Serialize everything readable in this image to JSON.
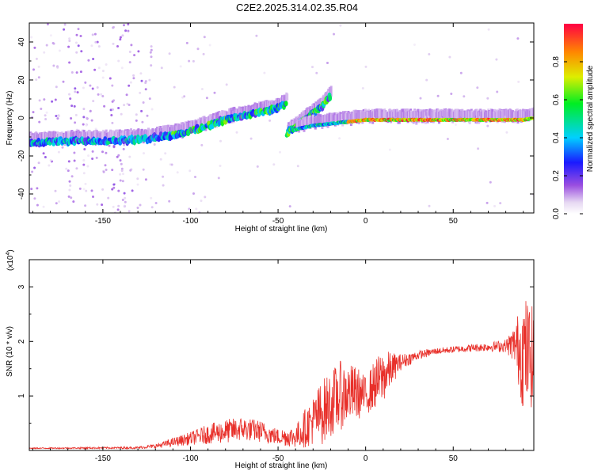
{
  "title": "C2E2.2025.314.02.35.R04",
  "chart_data": [
    {
      "type": "heatmap",
      "xlabel": "Height of straight line (km)",
      "ylabel": "Frequency (Hz)",
      "xlim": [
        -192,
        96
      ],
      "ylim": [
        -50,
        50
      ],
      "xticks": [
        -150,
        -100,
        -50,
        0,
        50
      ],
      "yticks": [
        -40,
        -20,
        0,
        20,
        40
      ],
      "colorbar": {
        "label": "Normalized spectral amplitude",
        "range": [
          0,
          1
        ],
        "ticks": [
          0.0,
          0.2,
          0.4,
          0.6,
          0.8
        ],
        "tick_labels": [
          "0.0",
          "0.2",
          "0.4",
          "0.6",
          "0.8"
        ]
      },
      "traces": [
        {
          "x": [
            -192,
            -175,
            -160,
            -140,
            -125,
            -110,
            -100,
            -90,
            -80,
            -70,
            -60,
            -50,
            -45
          ],
          "y": [
            -13,
            -12.5,
            -12,
            -12,
            -11,
            -9,
            -7,
            -4,
            -1,
            1,
            3,
            5,
            8
          ]
        },
        {
          "x": [
            -45,
            -40,
            -35,
            -30,
            -25,
            -20
          ],
          "y": [
            -8,
            -5,
            -1,
            2,
            6,
            12
          ]
        },
        {
          "x": [
            -40,
            -30,
            -20,
            -10,
            0,
            10,
            20,
            30,
            40,
            50,
            60,
            70,
            80,
            90,
            96
          ],
          "y": [
            -6,
            -4,
            -3,
            -2,
            -1,
            -1,
            -1,
            -1,
            -1,
            -1,
            -1,
            -1,
            -1,
            -1,
            0
          ]
        }
      ]
    },
    {
      "type": "line",
      "xlabel": "Height of straight line (km)",
      "ylabel": "SNR (10 * v/v)",
      "y_multiplier": "(x10",
      "y_multiplier_exp": "4",
      "y_multiplier_close": ")",
      "xlim": [
        -192,
        96
      ],
      "ylim": [
        0,
        3.5
      ],
      "xticks": [
        -150,
        -100,
        -50,
        0,
        50
      ],
      "yticks": [
        1,
        2,
        3
      ],
      "color": "#e8302a",
      "envelope": {
        "x": [
          -192,
          -130,
          -120,
          -110,
          -100,
          -90,
          -80,
          -70,
          -60,
          -50,
          -40,
          -35,
          -30,
          -25,
          -20,
          -15,
          -10,
          -5,
          0,
          5,
          10,
          15,
          20,
          30,
          40,
          50,
          60,
          70,
          80,
          85,
          90,
          96
        ],
        "y": [
          0.04,
          0.05,
          0.08,
          0.15,
          0.22,
          0.3,
          0.35,
          0.4,
          0.35,
          0.25,
          0.25,
          0.4,
          0.55,
          0.7,
          0.85,
          1.0,
          1.05,
          1.05,
          1.0,
          1.2,
          1.35,
          1.5,
          1.62,
          1.75,
          1.82,
          1.85,
          1.88,
          1.9,
          1.92,
          1.95,
          1.8,
          1.7
        ],
        "noise": [
          0.01,
          0.02,
          0.04,
          0.08,
          0.12,
          0.18,
          0.22,
          0.22,
          0.2,
          0.15,
          0.2,
          0.35,
          0.45,
          0.6,
          0.6,
          0.65,
          0.55,
          0.5,
          0.35,
          0.45,
          0.5,
          0.3,
          0.15,
          0.08,
          0.06,
          0.06,
          0.07,
          0.08,
          0.12,
          0.35,
          1.1,
          0.9
        ]
      }
    }
  ]
}
